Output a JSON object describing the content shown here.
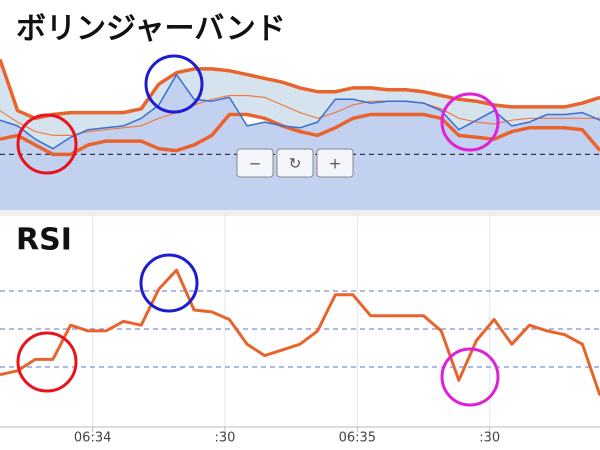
{
  "chart_data": [
    {
      "type": "line",
      "title": "ボリンジャーバンド",
      "x": [
        39,
        43,
        47,
        51,
        55,
        59,
        63,
        67,
        71,
        75,
        79,
        83,
        87,
        91,
        95,
        99,
        103,
        107,
        111,
        115,
        119,
        123,
        127,
        131,
        135,
        139,
        143,
        147,
        151,
        155,
        159,
        163,
        167,
        171,
        175
      ],
      "xlim": [
        39,
        175
      ],
      "ylim": [
        0,
        100
      ],
      "hlines": [
        24
      ],
      "band_fill": "#d5e3ee",
      "series": [
        {
          "color": "#e8642c",
          "line_width": 3.5,
          "values": [
            74,
            47,
            43,
            45,
            46,
            46,
            46,
            46,
            48,
            61,
            67,
            69,
            69,
            68,
            66,
            64,
            62,
            59,
            57,
            57,
            59,
            59,
            58,
            58,
            57,
            55,
            53,
            52,
            50,
            49,
            49,
            49,
            49,
            51,
            54
          ]
        },
        {
          "color": "#e8642c",
          "line_width": 3.5,
          "values": [
            32,
            34,
            29,
            24,
            24,
            29,
            31,
            31,
            31,
            27,
            26,
            29,
            34,
            45,
            45,
            43,
            39,
            36,
            34,
            38,
            43,
            45,
            45,
            45,
            45,
            43,
            34,
            33,
            32,
            36,
            38,
            38,
            38,
            37,
            26
          ]
        },
        {
          "color": "#ef7a45",
          "line_width": 1.2,
          "values": [
            47,
            41,
            36,
            34,
            34,
            36,
            37,
            38,
            39,
            43,
            46,
            50,
            53,
            55,
            55,
            54,
            50,
            46,
            43,
            46,
            50,
            52,
            52,
            52,
            51,
            48,
            43,
            41,
            40,
            42,
            43,
            43,
            43,
            43,
            43
          ]
        },
        {
          "color": "#3a6fd0",
          "line_width": 1.5,
          "fill": "#c3d1f1",
          "values": [
            42,
            39,
            32,
            27,
            33,
            37,
            38,
            39,
            43,
            50,
            66,
            53,
            52,
            54,
            39,
            41,
            39,
            38,
            41,
            53,
            53,
            51,
            52,
            52,
            51,
            47,
            37,
            42,
            47,
            39,
            41,
            45,
            45,
            46,
            42
          ]
        }
      ]
    },
    {
      "type": "line",
      "title": "RSI",
      "x": [
        39,
        43,
        47,
        51,
        55,
        59,
        63,
        67,
        71,
        75,
        79,
        83,
        87,
        91,
        95,
        99,
        103,
        107,
        111,
        115,
        119,
        123,
        127,
        131,
        135,
        139,
        143,
        147,
        151,
        155,
        159,
        163,
        167,
        171,
        175
      ],
      "xlim": [
        39,
        175
      ],
      "ylim": [
        0,
        100
      ],
      "hlines": [
        30,
        50,
        70
      ],
      "xticks": [
        {
          "value": 60,
          "label": "06:34"
        },
        {
          "value": 90,
          "label": ":30"
        },
        {
          "value": 120,
          "label": "06:35"
        },
        {
          "value": 150,
          "label": ":30"
        }
      ],
      "series": [
        {
          "color": "#e8642c",
          "line_width": 3,
          "values": [
            26,
            28,
            34,
            34,
            52,
            49,
            49,
            54,
            52,
            71,
            81,
            60,
            59,
            55,
            42,
            36,
            39,
            42,
            49,
            68,
            68,
            57,
            57,
            57,
            57,
            49,
            23,
            44,
            55,
            42,
            52,
            49,
            47,
            42,
            15
          ]
        }
      ]
    }
  ],
  "controls": [
    "−",
    "↻",
    "+"
  ]
}
